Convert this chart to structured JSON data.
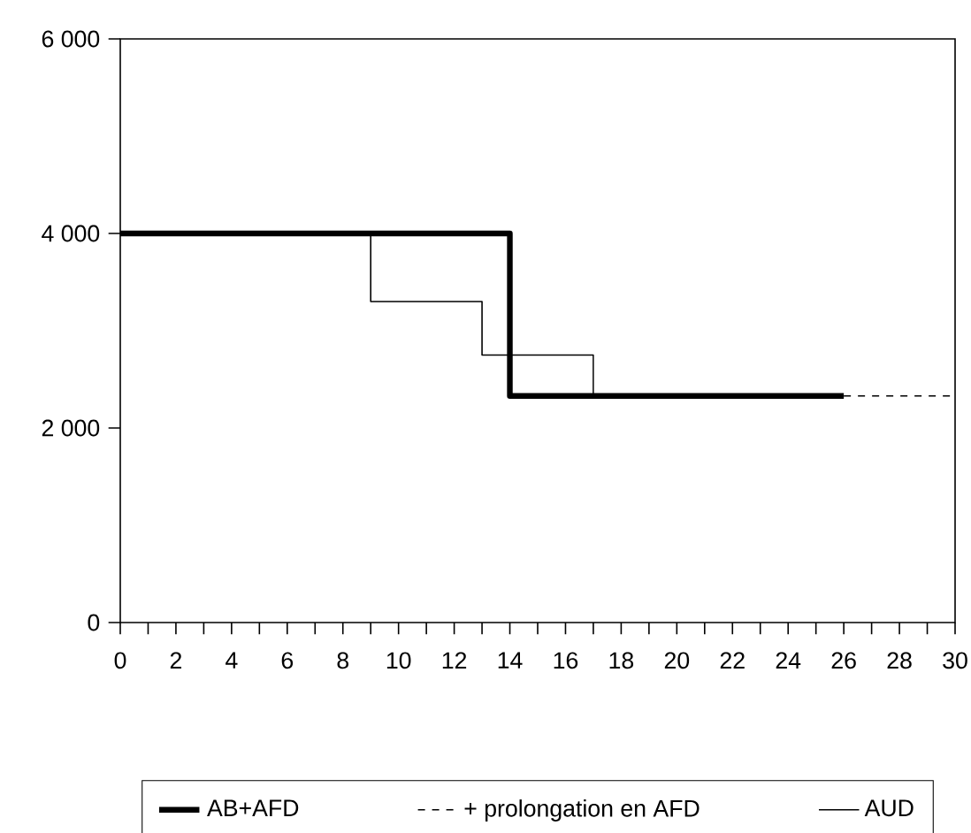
{
  "chart_data": {
    "type": "step",
    "xlim": [
      0,
      30
    ],
    "ylim": [
      0,
      6000
    ],
    "xticks": [
      0,
      {
        "value": 1,
        "label": null
      },
      2,
      {
        "value": 3,
        "label": null
      },
      4,
      {
        "value": 5,
        "label": null
      },
      6,
      {
        "value": 7,
        "label": null
      },
      8,
      {
        "value": 9,
        "label": null
      },
      10,
      {
        "value": 11,
        "label": null
      },
      12,
      {
        "value": 13,
        "label": null
      },
      14,
      {
        "value": 15,
        "label": null
      },
      16,
      {
        "value": 17,
        "label": null
      },
      18,
      {
        "value": 19,
        "label": null
      },
      20,
      {
        "value": 21,
        "label": null
      },
      22,
      {
        "value": 23,
        "label": null
      },
      24,
      {
        "value": 25,
        "label": null
      },
      26,
      {
        "value": 27,
        "label": null
      },
      28,
      {
        "value": 29,
        "label": null
      },
      30
    ],
    "yticks": [
      0,
      {
        "value": 2000,
        "label": "2 000"
      },
      {
        "value": 4000,
        "label": "4 000"
      },
      {
        "value": 6000,
        "label": "6 000"
      }
    ],
    "grid": false,
    "legend": "bottom",
    "marker": "none",
    "series": [
      {
        "name": "AB+AFD",
        "color": "#000000",
        "line_style": "solid",
        "x": [
          0,
          14,
          26
        ],
        "values": [
          4000,
          2330,
          2330
        ]
      },
      {
        "name": "+ prolongation en AFD",
        "color": "#000000",
        "line_style": "dashed",
        "x": [
          26,
          30
        ],
        "values": [
          2330,
          2330
        ]
      },
      {
        "name": "AUD",
        "color": "#000000",
        "line_style": "solid",
        "x": [
          0,
          9,
          13,
          17
        ],
        "values": [
          4000,
          3300,
          2750,
          2330
        ]
      }
    ]
  }
}
